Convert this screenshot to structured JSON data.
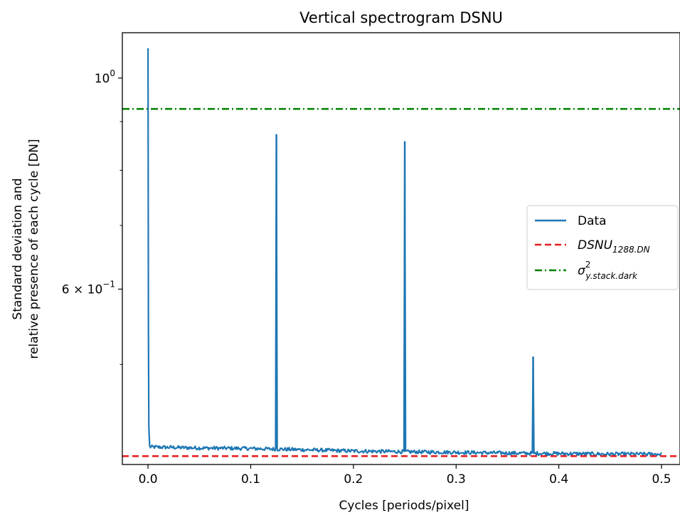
{
  "chart_data": {
    "type": "line",
    "title": "Vertical spectrogram DSNU",
    "xlabel": "Cycles [periods/pixel]",
    "ylabel_lines": [
      "Standard deviation and",
      "relative presence of each cycle [DN]"
    ],
    "yscale": "log",
    "xlim": [
      -0.025,
      0.518
    ],
    "ylim": [
      0.3925,
      1.116
    ],
    "xticks": [
      {
        "value": 0.0,
        "label": "0.0"
      },
      {
        "value": 0.1,
        "label": "0.1"
      },
      {
        "value": 0.2,
        "label": "0.2"
      },
      {
        "value": 0.3,
        "label": "0.3"
      },
      {
        "value": 0.4,
        "label": "0.4"
      },
      {
        "value": 0.5,
        "label": "0.5"
      }
    ],
    "yticks_major": [
      {
        "value": 1.0,
        "label_base": "10",
        "label_exp": "0"
      },
      {
        "value": 0.6,
        "label_mant": "6 × 10",
        "label_exp": "−1"
      }
    ],
    "yticks_minor": [
      0.5,
      0.7,
      0.8,
      0.9
    ],
    "grid": false,
    "legend_position": "center-right",
    "series": [
      {
        "name": "Data",
        "color": "#1f77b4",
        "style": "solid",
        "baseline_points": [
          [
            0.0,
            1.075
          ],
          [
            0.0005,
            0.48
          ],
          [
            0.001,
            0.412
          ],
          [
            0.002,
            0.4095
          ],
          [
            0.05,
            0.4085
          ],
          [
            0.1,
            0.408
          ],
          [
            0.15,
            0.4068
          ],
          [
            0.2,
            0.4055
          ],
          [
            0.25,
            0.4048
          ],
          [
            0.3,
            0.4042
          ],
          [
            0.35,
            0.4035
          ],
          [
            0.4,
            0.403
          ],
          [
            0.45,
            0.4025
          ],
          [
            0.5,
            0.4025
          ]
        ],
        "peaks": [
          [
            0.0,
            1.075
          ],
          [
            0.125,
            0.872
          ],
          [
            0.25,
            0.857
          ],
          [
            0.375,
            0.509
          ]
        ],
        "noise_amplitude": 0.0018
      },
      {
        "name": "DSNU",
        "name_sub": "1288.DN",
        "color": "#e41a1c",
        "style": "dashed",
        "y": 0.4005
      },
      {
        "name": "σ",
        "name_sup": "2",
        "name_sub": "y.stack.dark",
        "color": "#008000",
        "style": "dashdot",
        "y": 0.928
      }
    ]
  }
}
